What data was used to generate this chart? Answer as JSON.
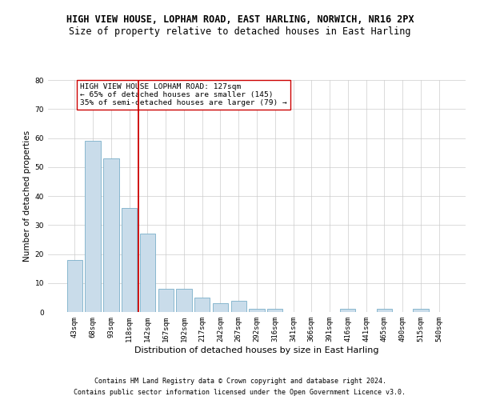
{
  "title1": "HIGH VIEW HOUSE, LOPHAM ROAD, EAST HARLING, NORWICH, NR16 2PX",
  "title2": "Size of property relative to detached houses in East Harling",
  "xlabel": "Distribution of detached houses by size in East Harling",
  "ylabel": "Number of detached properties",
  "categories": [
    "43sqm",
    "68sqm",
    "93sqm",
    "118sqm",
    "142sqm",
    "167sqm",
    "192sqm",
    "217sqm",
    "242sqm",
    "267sqm",
    "292sqm",
    "316sqm",
    "341sqm",
    "366sqm",
    "391sqm",
    "416sqm",
    "441sqm",
    "465sqm",
    "490sqm",
    "515sqm",
    "540sqm"
  ],
  "values": [
    18,
    59,
    53,
    36,
    27,
    8,
    8,
    5,
    3,
    4,
    1,
    1,
    0,
    0,
    0,
    1,
    0,
    1,
    0,
    1,
    0
  ],
  "bar_color": "#c9dcea",
  "bar_edge_color": "#7aafc9",
  "vline_x": 3.5,
  "vline_color": "#cc0000",
  "annotation_text": "HIGH VIEW HOUSE LOPHAM ROAD: 127sqm\n← 65% of detached houses are smaller (145)\n35% of semi-detached houses are larger (79) →",
  "annotation_box_color": "#ffffff",
  "annotation_box_edge": "#cc0000",
  "ylim": [
    0,
    80
  ],
  "yticks": [
    0,
    10,
    20,
    30,
    40,
    50,
    60,
    70,
    80
  ],
  "grid_color": "#cccccc",
  "background_color": "#ffffff",
  "footer1": "Contains HM Land Registry data © Crown copyright and database right 2024.",
  "footer2": "Contains public sector information licensed under the Open Government Licence v3.0.",
  "title1_fontsize": 8.5,
  "title2_fontsize": 8.5,
  "xlabel_fontsize": 8,
  "ylabel_fontsize": 7.5,
  "tick_fontsize": 6.5,
  "annotation_fontsize": 6.8,
  "footer_fontsize": 6.0
}
